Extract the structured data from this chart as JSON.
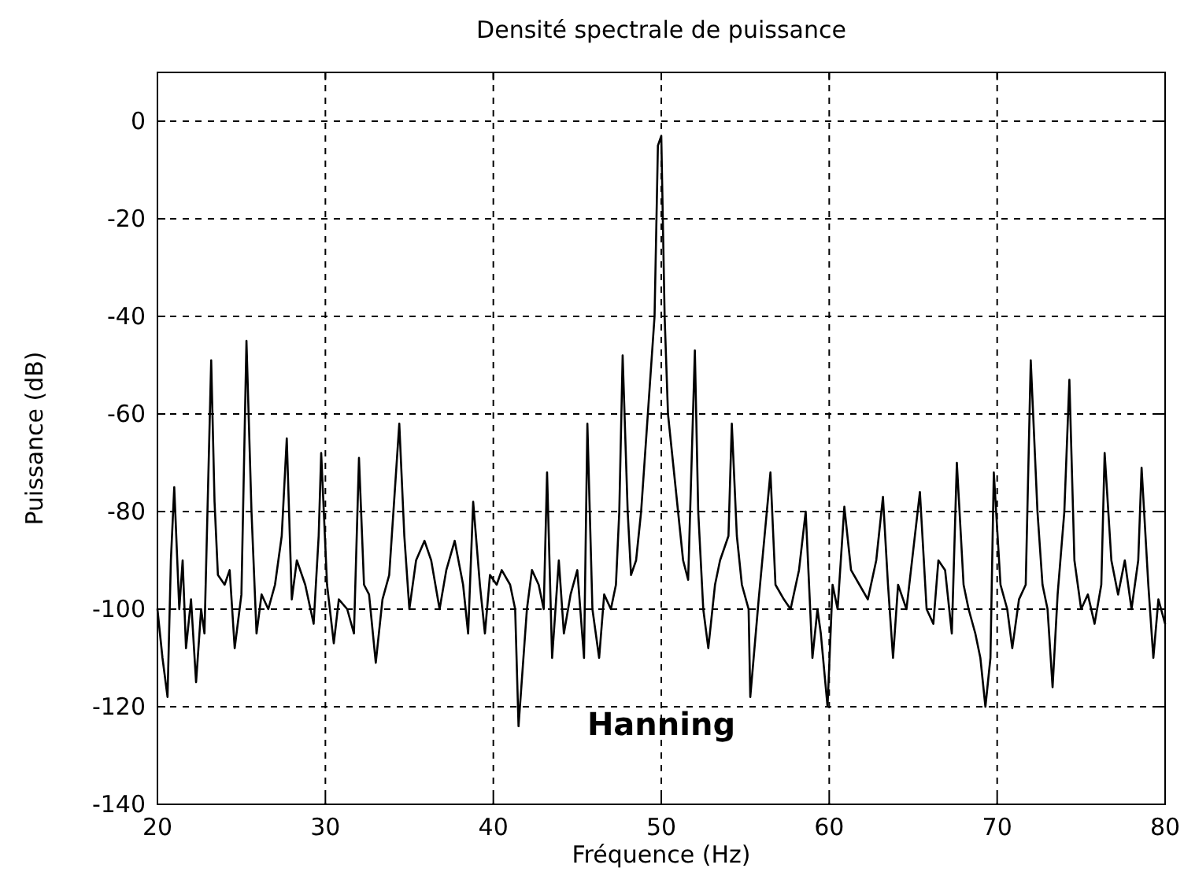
{
  "chart_data": {
    "type": "line",
    "title": "Densité spectrale de puissance",
    "xlabel": "Fréquence (Hz)",
    "ylabel": "Puissance (dB)",
    "annotations": [
      "Hanning"
    ],
    "xlim": [
      20,
      80
    ],
    "ylim": [
      -140,
      10
    ],
    "xticks": [
      20,
      30,
      40,
      50,
      60,
      70,
      80
    ],
    "yticks": [
      -140,
      -120,
      -100,
      -80,
      -60,
      -40,
      -20,
      0
    ],
    "grid": true,
    "line_style": "solid",
    "marker": "none",
    "series": [
      {
        "color": "#000000",
        "x": [
          20,
          20.3,
          20.6,
          20.8,
          21,
          21.3,
          21.5,
          21.7,
          22,
          22.3,
          22.6,
          22.8,
          23.2,
          23.4,
          23.6,
          24,
          24.3,
          24.6,
          25,
          25.3,
          25.6,
          25.9,
          26.2,
          26.6,
          27,
          27.4,
          27.7,
          28,
          28.3,
          28.8,
          29.3,
          29.6,
          29.75,
          30.1,
          30.5,
          30.8,
          31.3,
          31.7,
          32,
          32.3,
          32.6,
          33,
          33.4,
          33.8,
          34.4,
          34.7,
          35,
          35.4,
          35.9,
          36.3,
          36.8,
          37.2,
          37.7,
          38.2,
          38.5,
          38.8,
          39.2,
          39.5,
          39.8,
          40.2,
          40.5,
          41,
          41.3,
          41.5,
          42,
          42.3,
          42.7,
          43,
          43.2,
          43.5,
          43.9,
          44.2,
          44.6,
          45,
          45.4,
          45.6,
          45.9,
          46.3,
          46.6,
          47,
          47.3,
          47.5,
          47.7,
          48,
          48.2,
          48.5,
          48.8,
          49,
          49.3,
          49.6,
          49.8,
          50,
          50.2,
          50.4,
          50.7,
          51,
          51.3,
          51.6,
          52,
          52.2,
          52.5,
          52.8,
          53.2,
          53.5,
          54,
          54.2,
          54.5,
          54.8,
          55.2,
          55.3,
          55.8,
          56.5,
          56.8,
          57.3,
          57.7,
          58.2,
          58.6,
          59,
          59.3,
          59.5,
          59.9,
          60.2,
          60.5,
          60.9,
          61.3,
          61.8,
          62.3,
          62.8,
          63.2,
          63.5,
          63.8,
          64.1,
          64.6,
          65,
          65.4,
          65.8,
          66.2,
          66.5,
          66.9,
          67.3,
          67.6,
          68,
          68.3,
          68.7,
          69,
          69.3,
          69.6,
          69.8,
          70.2,
          70.6,
          70.9,
          71.3,
          71.7,
          72,
          72.4,
          72.7,
          73,
          73.3,
          73.6,
          74,
          74.3,
          74.6,
          75,
          75.4,
          75.8,
          76.2,
          76.4,
          76.8,
          77.2,
          77.6,
          78,
          78.4,
          78.6,
          79,
          79.3,
          79.6,
          80
        ],
        "values": [
          -100,
          -110,
          -118,
          -90,
          -75,
          -100,
          -90,
          -108,
          -98,
          -115,
          -100,
          -105,
          -49,
          -78,
          -93,
          -95,
          -92,
          -108,
          -97,
          -45,
          -80,
          -105,
          -97,
          -100,
          -95,
          -85,
          -65,
          -98,
          -90,
          -95,
          -103,
          -85,
          -68,
          -95,
          -107,
          -98,
          -100,
          -105,
          -69,
          -95,
          -97,
          -111,
          -98,
          -93,
          -62,
          -85,
          -100,
          -90,
          -86,
          -90,
          -100,
          -92,
          -86,
          -95,
          -105,
          -78,
          -95,
          -105,
          -93,
          -95,
          -92,
          -95,
          -100,
          -124,
          -100,
          -92,
          -95,
          -100,
          -72,
          -110,
          -90,
          -105,
          -97,
          -92,
          -110,
          -62,
          -100,
          -110,
          -97,
          -100,
          -95,
          -80,
          -48,
          -80,
          -93,
          -90,
          -80,
          -70,
          -55,
          -40,
          -5,
          -3,
          -40,
          -60,
          -70,
          -80,
          -90,
          -94,
          -47,
          -80,
          -100,
          -108,
          -95,
          -90,
          -85,
          -62,
          -85,
          -95,
          -100,
          -118,
          -98,
          -72,
          -95,
          -98,
          -100,
          -92,
          -80,
          -110,
          -100,
          -105,
          -120,
          -95,
          -100,
          -79,
          -92,
          -95,
          -98,
          -90,
          -77,
          -95,
          -110,
          -95,
          -100,
          -88,
          -76,
          -100,
          -103,
          -90,
          -92,
          -105,
          -70,
          -95,
          -100,
          -105,
          -110,
          -120,
          -110,
          -72,
          -95,
          -100,
          -108,
          -98,
          -95,
          -49,
          -80,
          -95,
          -100,
          -116,
          -97,
          -80,
          -53,
          -90,
          -100,
          -97,
          -103,
          -95,
          -68,
          -90,
          -97,
          -90,
          -100,
          -90,
          -71,
          -95,
          -110,
          -98,
          -103
        ]
      }
    ]
  }
}
